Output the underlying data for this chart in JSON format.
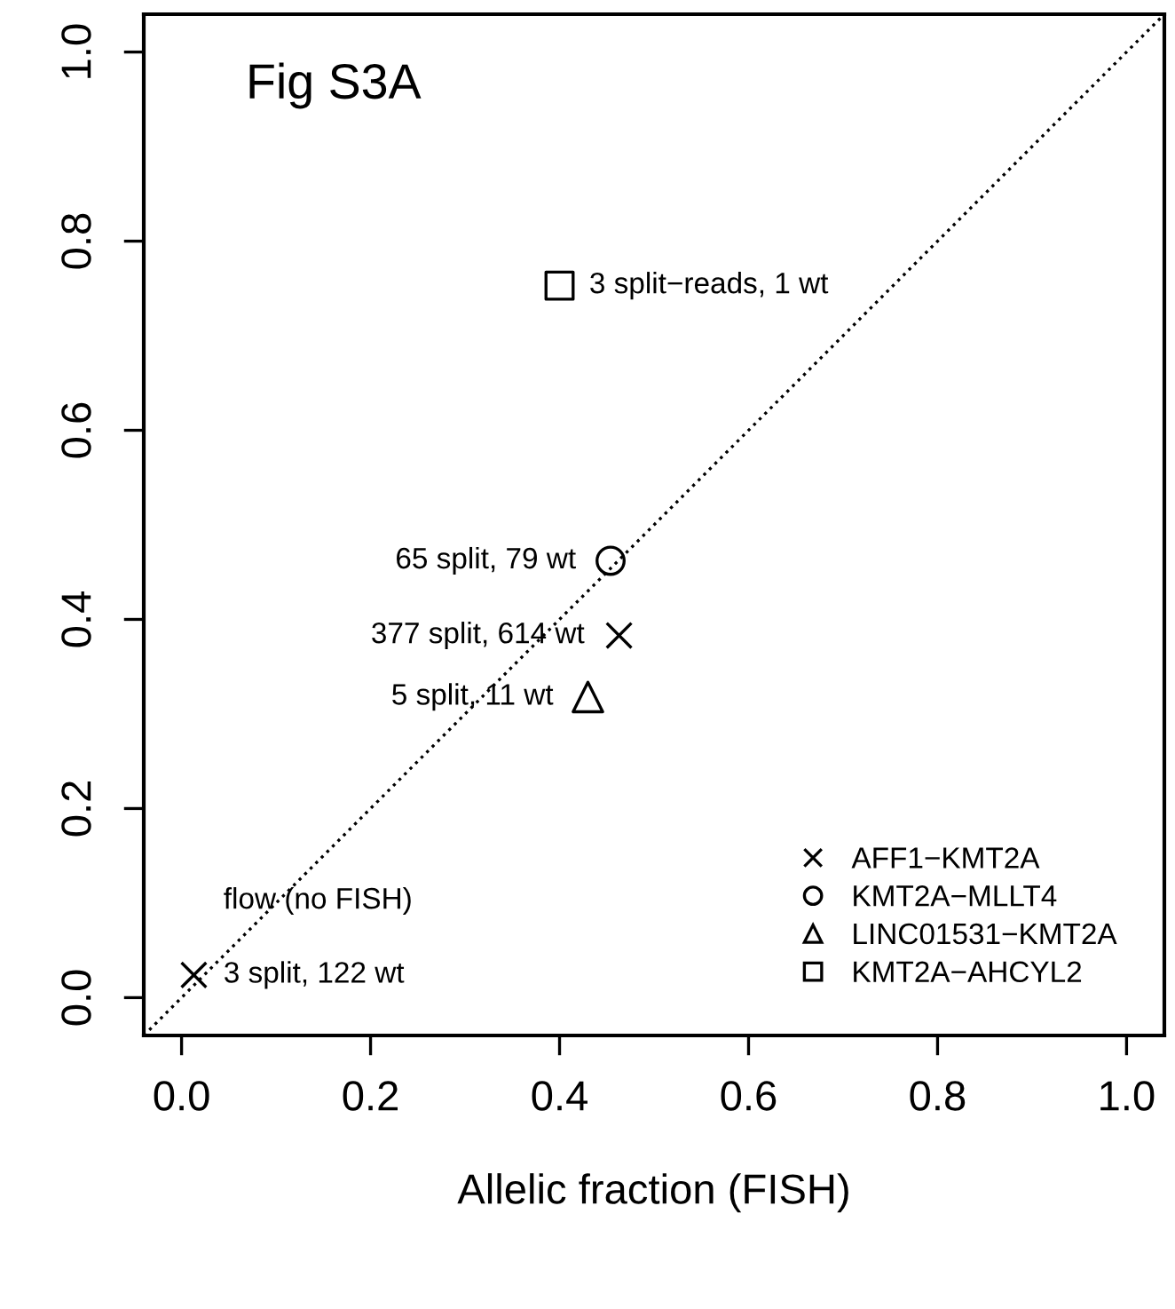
{
  "chart_data": {
    "type": "scatter",
    "xlabel": "Allelic fraction (FISH)",
    "xlim": [
      -0.04,
      1.04
    ],
    "ylim": [
      -0.04,
      1.04
    ],
    "xticks": [
      {
        "value": 0,
        "label": "0.0"
      },
      0.2,
      0.4,
      0.6,
      0.8,
      {
        "value": 1,
        "label": "1.0"
      }
    ],
    "yticks": [
      {
        "value": 0,
        "label": "0.0"
      },
      0.2,
      0.4,
      0.6,
      0.8,
      {
        "value": 1,
        "label": "1.0"
      }
    ],
    "grid": false,
    "legend": "bottom right",
    "series": [
      {
        "name": "AFF1−KMT2A",
        "color": "#000000",
        "marker": "cross",
        "x": [
          0.013,
          0.463
        ],
        "values": [
          0.024,
          0.383
        ]
      },
      {
        "name": "KMT2A−MLLT4",
        "color": "#000000",
        "marker": "circle",
        "x": [
          0.454
        ],
        "values": [
          0.462
        ]
      },
      {
        "name": "LINC01531−KMT2A",
        "color": "#000000",
        "marker": "triangle",
        "x": [
          0.43
        ],
        "values": [
          0.318
        ]
      },
      {
        "name": "KMT2A−AHCYL2",
        "color": "#000000",
        "marker": "square",
        "x": [
          0.4
        ],
        "values": [
          0.753
        ]
      },
      {
        "type": "line",
        "color": "#000000",
        "line_style": "dotted",
        "marker": "none",
        "x": [
          -0.04,
          1.04
        ],
        "values": [
          -0.04,
          1.04
        ]
      }
    ],
    "annotations": [
      "Fig S3A",
      {
        "text": "3 split−reads, 1 wt",
        "x": 0.4,
        "y": 0.753
      },
      {
        "text": "65 split, 79 wt",
        "x": 0.454,
        "y": 0.462
      },
      {
        "text": "377 split, 614 wt",
        "x": 0.463,
        "y": 0.383
      },
      {
        "text": "5 split, 11 wt",
        "x": 0.43,
        "y": 0.318
      },
      {
        "text": "3 split, 122 wt",
        "x": 0.013,
        "y": 0.024
      },
      {
        "text": "flow (no FISH)",
        "x": 0.013,
        "y": 0.024
      }
    ]
  }
}
